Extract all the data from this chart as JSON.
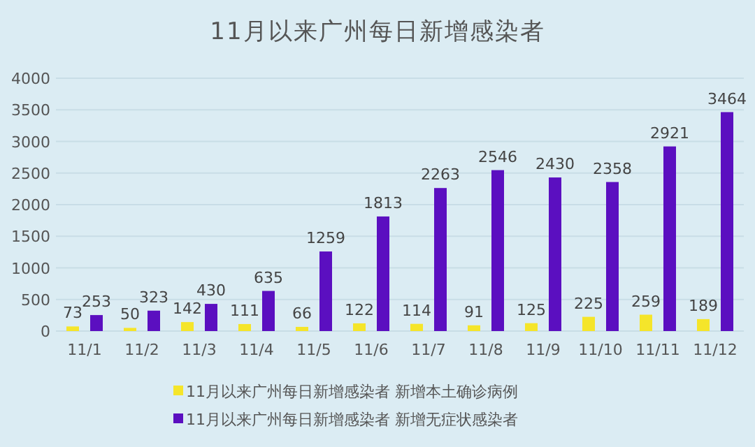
{
  "chart_data": {
    "type": "bar",
    "title": "11月以来广州每日新增感染者",
    "categories": [
      "11/1",
      "11/2",
      "11/3",
      "11/4",
      "11/5",
      "11/6",
      "11/7",
      "11/8",
      "11/9",
      "11/10",
      "11/11",
      "11/12"
    ],
    "series": [
      {
        "name": "11月以来广州每日新增感染者 新增本土确诊病例",
        "color": "#f5e52a",
        "values": [
          73,
          50,
          142,
          111,
          66,
          122,
          114,
          91,
          125,
          225,
          259,
          189
        ]
      },
      {
        "name": "11月以来广州每日新增感染者 新增无症状感染者",
        "color": "#5b0fc0",
        "values": [
          253,
          323,
          430,
          635,
          1259,
          1813,
          2263,
          2546,
          2430,
          2358,
          2921,
          3464
        ]
      }
    ],
    "ylim": [
      0,
      4000
    ],
    "yticks": [
      0,
      500,
      1000,
      1500,
      2000,
      2500,
      3000,
      3500,
      4000
    ],
    "grid": "y",
    "legend": "bottom",
    "data_labels": true
  }
}
